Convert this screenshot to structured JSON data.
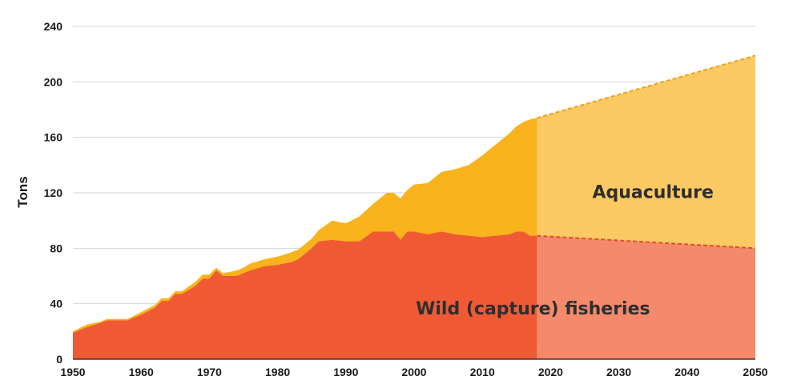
{
  "chart_data": {
    "type": "area",
    "ylabel": "Tons",
    "xlabel": "",
    "xlim": [
      1950,
      2050
    ],
    "ylim": [
      0,
      240
    ],
    "x_ticks": [
      1950,
      1960,
      1970,
      1980,
      1990,
      2000,
      2010,
      2020,
      2030,
      2040,
      2050
    ],
    "y_ticks": [
      0,
      40,
      80,
      120,
      160,
      200,
      240
    ],
    "grid": true,
    "projection_start": 2018,
    "stacked": true,
    "series": [
      {
        "name": "Wild (capture) fisheries",
        "color": "#ef5a35",
        "projection_color": "#f4896b",
        "historical": [
          [
            1950,
            19
          ],
          [
            1952,
            23
          ],
          [
            1954,
            26
          ],
          [
            1955,
            28
          ],
          [
            1958,
            28
          ],
          [
            1960,
            32
          ],
          [
            1962,
            37
          ],
          [
            1963,
            42
          ],
          [
            1964,
            42
          ],
          [
            1965,
            47
          ],
          [
            1966,
            47
          ],
          [
            1968,
            53
          ],
          [
            1969,
            58
          ],
          [
            1970,
            58
          ],
          [
            1971,
            64
          ],
          [
            1972,
            60
          ],
          [
            1974,
            60
          ],
          [
            1975,
            62
          ],
          [
            1976,
            64
          ],
          [
            1978,
            67
          ],
          [
            1980,
            68
          ],
          [
            1982,
            70
          ],
          [
            1983,
            72
          ],
          [
            1985,
            80
          ],
          [
            1986,
            85
          ],
          [
            1988,
            86
          ],
          [
            1990,
            85
          ],
          [
            1992,
            85
          ],
          [
            1994,
            92
          ],
          [
            1996,
            92
          ],
          [
            1997,
            92
          ],
          [
            1998,
            86
          ],
          [
            1999,
            92
          ],
          [
            2000,
            92
          ],
          [
            2002,
            90
          ],
          [
            2004,
            92
          ],
          [
            2006,
            90
          ],
          [
            2010,
            88
          ],
          [
            2012,
            89
          ],
          [
            2014,
            90
          ],
          [
            2015,
            92
          ],
          [
            2016,
            92
          ],
          [
            2017,
            89
          ],
          [
            2018,
            89
          ]
        ],
        "projection": [
          [
            2018,
            89
          ],
          [
            2050,
            80
          ]
        ]
      },
      {
        "name": "Aquaculture",
        "color": "#f9b31c",
        "projection_color": "#fcc963",
        "historical_total": [
          [
            1950,
            20
          ],
          [
            1952,
            25
          ],
          [
            1954,
            27
          ],
          [
            1955,
            29
          ],
          [
            1958,
            29
          ],
          [
            1960,
            34
          ],
          [
            1962,
            39
          ],
          [
            1963,
            44
          ],
          [
            1964,
            44
          ],
          [
            1965,
            49
          ],
          [
            1966,
            49
          ],
          [
            1968,
            56
          ],
          [
            1969,
            61
          ],
          [
            1970,
            61
          ],
          [
            1971,
            66
          ],
          [
            1972,
            62
          ],
          [
            1974,
            64
          ],
          [
            1975,
            66
          ],
          [
            1976,
            69
          ],
          [
            1978,
            72
          ],
          [
            1980,
            74
          ],
          [
            1982,
            77
          ],
          [
            1983,
            79
          ],
          [
            1985,
            87
          ],
          [
            1986,
            93
          ],
          [
            1988,
            100
          ],
          [
            1990,
            98
          ],
          [
            1992,
            103
          ],
          [
            1994,
            112
          ],
          [
            1996,
            120
          ],
          [
            1997,
            120
          ],
          [
            1998,
            116
          ],
          [
            1999,
            122
          ],
          [
            2000,
            126
          ],
          [
            2002,
            127
          ],
          [
            2004,
            135
          ],
          [
            2006,
            137
          ],
          [
            2008,
            140
          ],
          [
            2010,
            147
          ],
          [
            2012,
            155
          ],
          [
            2014,
            163
          ],
          [
            2015,
            168
          ],
          [
            2016,
            171
          ],
          [
            2017,
            173
          ],
          [
            2018,
            174
          ]
        ],
        "projection_total": [
          [
            2018,
            174
          ],
          [
            2050,
            219
          ]
        ]
      }
    ],
    "annotations": [
      {
        "text": "Aquaculture",
        "x": 2035,
        "y": 121
      },
      {
        "text": "Wild (capture) fisheries",
        "x": 2018,
        "y": 37
      }
    ]
  }
}
